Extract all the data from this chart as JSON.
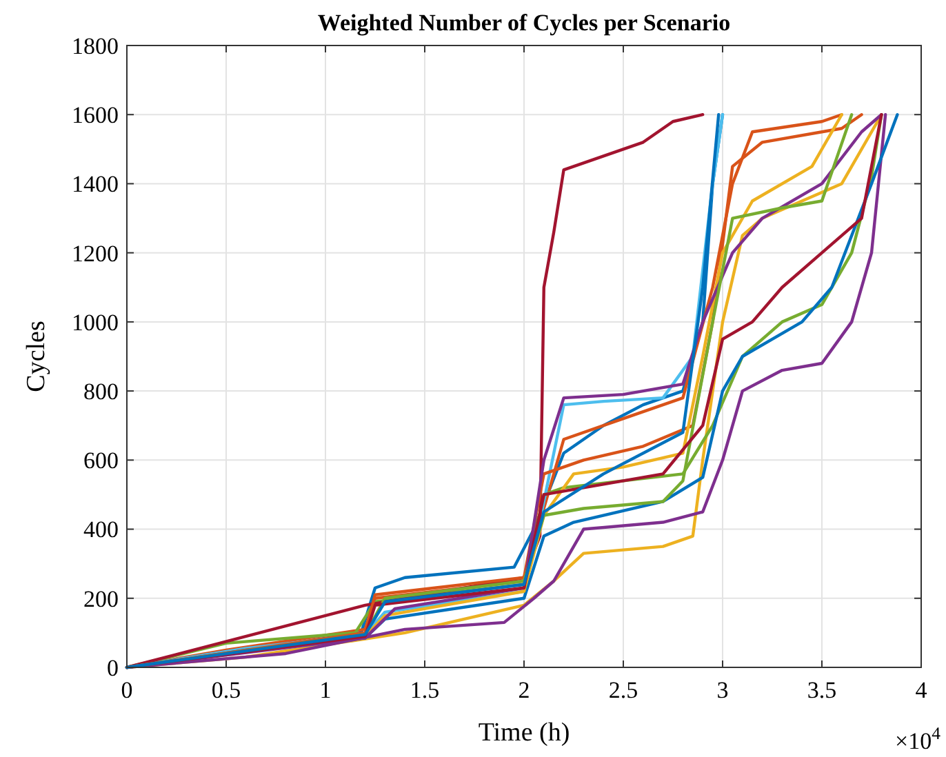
{
  "chart_data": {
    "type": "line",
    "title": "Weighted Number of Cycles per Scenario",
    "xlabel": "Time (h)",
    "ylabel": "Cycles",
    "annotations": [
      "×10$^{4}$"
    ],
    "xlim": [
      0,
      4
    ],
    "xticks": [
      0,
      0.5,
      1,
      1.5,
      2,
      2.5,
      3,
      3.5,
      4
    ],
    "ylim": [
      0,
      1800
    ],
    "yticks": [
      0,
      200,
      400,
      600,
      800,
      1000,
      1200,
      1400,
      1600,
      1800
    ],
    "grid": true,
    "line_style": "solid",
    "series": [
      {
        "color": "#0072bd",
        "x": [
          0,
          0.5,
          1.18,
          1.25,
          1.4,
          1.95,
          2.05,
          2.2,
          2.4,
          2.6,
          2.8,
          2.9,
          2.95,
          3.0
        ],
        "values": [
          0,
          40,
          100,
          230,
          260,
          290,
          400,
          620,
          700,
          760,
          800,
          1000,
          1400,
          1600
        ]
      },
      {
        "color": "#d95319",
        "x": [
          0,
          0.5,
          1.2,
          1.25,
          2.0,
          2.08,
          2.2,
          2.5,
          2.8,
          2.95,
          3.05,
          3.15,
          3.5,
          3.6
        ],
        "values": [
          0,
          50,
          110,
          200,
          250,
          420,
          660,
          720,
          780,
          1100,
          1400,
          1550,
          1580,
          1600
        ]
      },
      {
        "color": "#edb120",
        "x": [
          0,
          0.6,
          1.4,
          2.0,
          2.15,
          2.3,
          2.7,
          2.85,
          2.9,
          3.0,
          3.1,
          3.2,
          3.6,
          3.8
        ],
        "values": [
          0,
          30,
          100,
          180,
          250,
          330,
          350,
          380,
          600,
          1000,
          1250,
          1300,
          1400,
          1600
        ]
      },
      {
        "color": "#7e2f8e",
        "x": [
          0,
          0.8,
          1.4,
          1.9,
          2.05,
          2.15,
          2.3,
          2.7,
          2.9,
          3.0,
          3.1,
          3.3,
          3.5,
          3.65,
          3.75,
          3.82
        ],
        "values": [
          0,
          40,
          110,
          130,
          200,
          250,
          400,
          420,
          450,
          600,
          800,
          860,
          880,
          1000,
          1200,
          1600
        ]
      },
      {
        "color": "#77ac30",
        "x": [
          0,
          0.5,
          1.15,
          1.25,
          2.0,
          2.1,
          2.2,
          2.8,
          2.95,
          3.1,
          3.3,
          3.5,
          3.65,
          3.75,
          3.8
        ],
        "values": [
          0,
          70,
          100,
          190,
          240,
          500,
          520,
          560,
          700,
          900,
          1000,
          1050,
          1200,
          1420,
          1600
        ]
      },
      {
        "color": "#4dbeee",
        "x": [
          0,
          0.6,
          1.2,
          1.3,
          2.0,
          2.1,
          2.2,
          2.4,
          2.7,
          2.85,
          2.95,
          3.0
        ],
        "values": [
          0,
          55,
          95,
          160,
          220,
          480,
          760,
          770,
          780,
          900,
          1400,
          1600
        ]
      },
      {
        "color": "#a2142f",
        "x": [
          0,
          1.2,
          2.0,
          2.08,
          2.1,
          2.15,
          2.2,
          2.4,
          2.6,
          2.75,
          2.9
        ],
        "values": [
          0,
          180,
          260,
          380,
          1100,
          1260,
          1440,
          1480,
          1520,
          1580,
          1600
        ]
      },
      {
        "color": "#0072bd",
        "x": [
          0,
          0.6,
          1.2,
          1.3,
          2.0,
          2.1,
          2.25,
          2.7,
          2.9,
          3.0,
          3.1,
          3.4,
          3.55,
          3.75,
          3.88
        ],
        "values": [
          0,
          50,
          85,
          140,
          200,
          380,
          420,
          480,
          550,
          800,
          900,
          1000,
          1100,
          1400,
          1600
        ]
      },
      {
        "color": "#d95319",
        "x": [
          0,
          1.2,
          1.25,
          2.0,
          2.1,
          2.3,
          2.6,
          2.85,
          2.95,
          3.05,
          3.2,
          3.6,
          3.7
        ],
        "values": [
          0,
          100,
          210,
          260,
          560,
          600,
          640,
          700,
          1000,
          1450,
          1520,
          1560,
          1600
        ]
      },
      {
        "color": "#edb120",
        "x": [
          0,
          1.2,
          1.3,
          2.0,
          2.1,
          2.25,
          2.5,
          2.8,
          2.9,
          3.0,
          3.15,
          3.45,
          3.6
        ],
        "values": [
          0,
          90,
          150,
          220,
          440,
          560,
          580,
          620,
          900,
          1200,
          1350,
          1450,
          1600
        ]
      },
      {
        "color": "#7e2f8e",
        "x": [
          0,
          1.2,
          1.35,
          2.0,
          2.1,
          2.2,
          2.5,
          2.8,
          2.9,
          3.05,
          3.2,
          3.5,
          3.7,
          3.8
        ],
        "values": [
          0,
          85,
          170,
          230,
          600,
          780,
          790,
          820,
          1000,
          1200,
          1300,
          1400,
          1550,
          1600
        ]
      },
      {
        "color": "#77ac30",
        "x": [
          0,
          1.2,
          1.3,
          2.0,
          2.1,
          2.3,
          2.7,
          2.8,
          2.95,
          3.05,
          3.3,
          3.5,
          3.65
        ],
        "values": [
          0,
          95,
          200,
          250,
          440,
          460,
          480,
          540,
          1000,
          1300,
          1330,
          1350,
          1600
        ]
      },
      {
        "color": "#a2142f",
        "x": [
          0,
          1.2,
          1.25,
          2.0,
          2.1,
          2.3,
          2.7,
          2.9,
          3.0,
          3.15,
          3.3,
          3.5,
          3.7,
          3.8
        ],
        "values": [
          0,
          90,
          180,
          230,
          500,
          520,
          560,
          700,
          950,
          1000,
          1100,
          1200,
          1300,
          1600
        ]
      },
      {
        "color": "#0072bd",
        "x": [
          0,
          1.2,
          1.3,
          2.0,
          2.1,
          2.4,
          2.8,
          2.9,
          2.98
        ],
        "values": [
          0,
          95,
          190,
          240,
          450,
          560,
          680,
          1100,
          1600
        ]
      }
    ]
  }
}
